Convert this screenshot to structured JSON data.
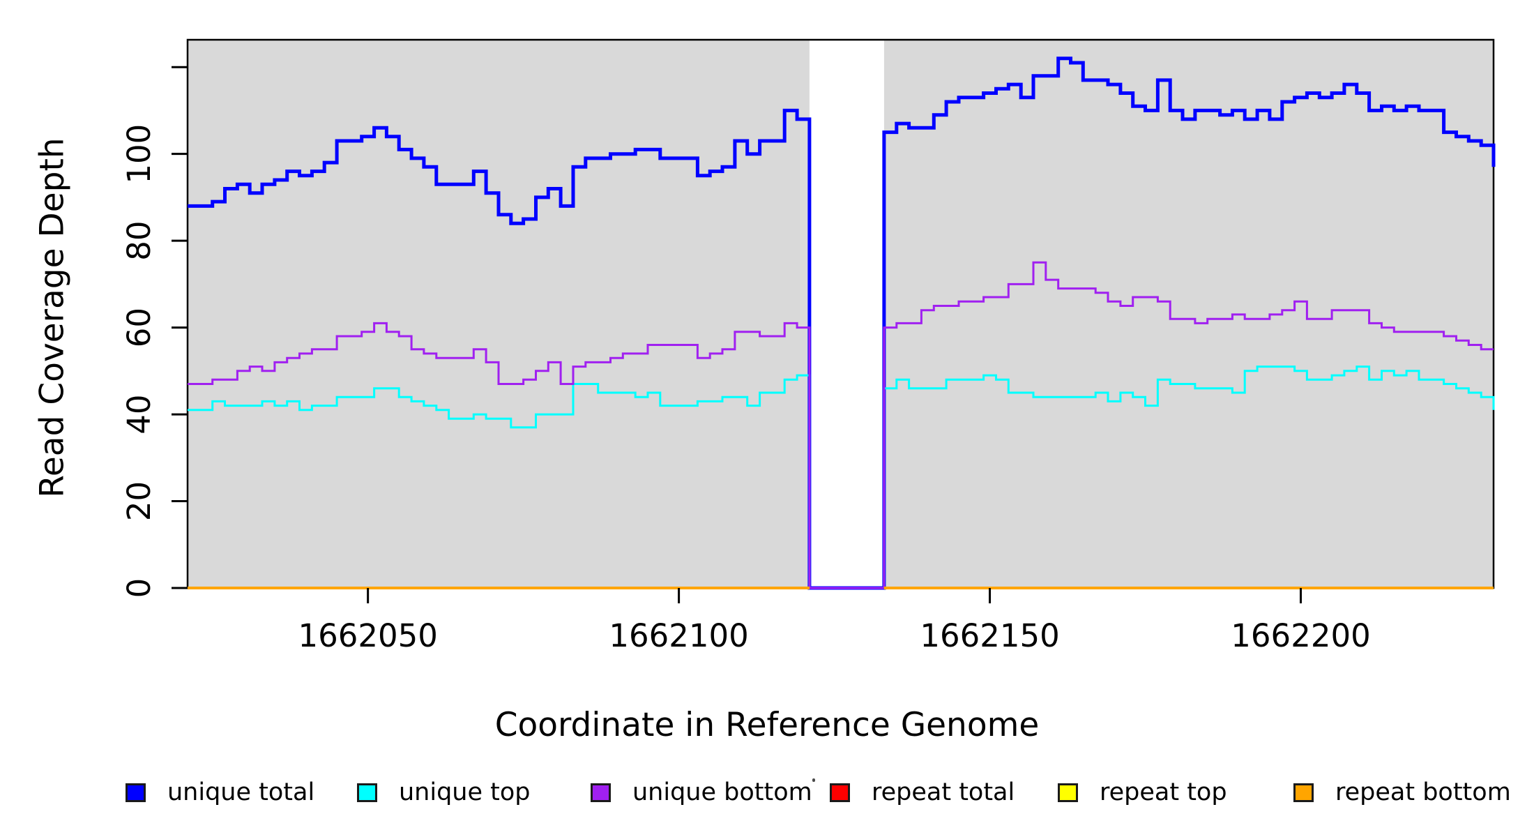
{
  "chart_data": {
    "type": "line",
    "subtype": "step-coverage",
    "title": "",
    "xlabel": "Coordinate in Reference Genome",
    "ylabel": "Read Coverage Depth",
    "xlim": [
      1662021,
      1662231
    ],
    "ylim": [
      0,
      126.3
    ],
    "x_ticks": [
      1662050,
      1662100,
      1662150,
      1662200
    ],
    "y_ticks": [
      0,
      20,
      40,
      60,
      80,
      100,
      120
    ],
    "y_tick_labels": [
      "0",
      "20",
      "40",
      "60",
      "80",
      "100",
      ""
    ],
    "grid": false,
    "panel_background": "#d9d9d9",
    "assembly_gap_region": [
      1662121,
      1662133
    ],
    "shaded_regions": [
      [
        1662021,
        1662121
      ],
      [
        1662133,
        1662231
      ]
    ],
    "x_start": 1662021,
    "x_step": 2,
    "legend": [
      "unique total",
      "unique top",
      "unique bottom",
      "repeat total",
      "repeat top",
      "repeat bottom"
    ],
    "legend_position": "bottom",
    "series": [
      {
        "name": "unique total",
        "color": "#0000ff",
        "lwd": 5,
        "values": [
          88,
          88,
          89,
          92,
          93,
          91,
          93,
          94,
          96,
          95,
          96,
          98,
          103,
          103,
          104,
          106,
          104,
          101,
          99,
          97,
          93,
          93,
          93,
          96,
          91,
          86,
          84,
          85,
          90,
          92,
          88,
          97,
          99,
          99,
          100,
          100,
          101,
          101,
          99,
          99,
          99,
          95,
          96,
          97,
          103,
          100,
          103,
          103,
          110,
          108,
          0,
          0,
          0,
          0,
          0,
          0,
          105,
          107,
          106,
          106,
          109,
          112,
          113,
          113,
          114,
          115,
          116,
          113,
          118,
          118,
          122,
          121,
          117,
          117,
          116,
          114,
          111,
          110,
          117,
          110,
          108,
          110,
          110,
          109,
          110,
          108,
          110,
          108,
          112,
          113,
          114,
          113,
          114,
          116,
          114,
          110,
          111,
          110,
          111,
          110,
          110,
          105,
          104,
          103,
          102,
          97
        ]
      },
      {
        "name": "unique top",
        "color": "#00ffff",
        "lwd": 3,
        "values": [
          41,
          41,
          43,
          42,
          42,
          42,
          43,
          42,
          43,
          41,
          42,
          42,
          44,
          44,
          44,
          46,
          46,
          44,
          43,
          42,
          41,
          39,
          39,
          40,
          39,
          39,
          37,
          37,
          40,
          40,
          40,
          47,
          47,
          45,
          45,
          45,
          44,
          45,
          42,
          42,
          42,
          43,
          43,
          44,
          44,
          42,
          45,
          45,
          48,
          49,
          0,
          0,
          0,
          0,
          0,
          0,
          46,
          48,
          46,
          46,
          46,
          48,
          48,
          48,
          49,
          48,
          45,
          45,
          44,
          44,
          44,
          44,
          44,
          45,
          43,
          45,
          44,
          42,
          48,
          47,
          47,
          46,
          46,
          46,
          45,
          50,
          51,
          51,
          51,
          50,
          48,
          48,
          49,
          50,
          51,
          48,
          50,
          49,
          50,
          48,
          48,
          47,
          46,
          45,
          44,
          41
        ]
      },
      {
        "name": "unique bottom",
        "color": "#a020f0",
        "lwd": 3,
        "values": [
          47,
          47,
          48,
          48,
          50,
          51,
          50,
          52,
          53,
          54,
          55,
          55,
          58,
          58,
          59,
          61,
          59,
          58,
          55,
          54,
          53,
          53,
          53,
          55,
          52,
          47,
          47,
          48,
          50,
          52,
          47,
          51,
          52,
          52,
          53,
          54,
          54,
          56,
          56,
          56,
          56,
          53,
          54,
          55,
          59,
          59,
          58,
          58,
          61,
          60,
          0,
          0,
          0,
          0,
          0,
          0,
          60,
          61,
          61,
          64,
          65,
          65,
          66,
          66,
          67,
          67,
          70,
          70,
          75,
          71,
          69,
          69,
          69,
          68,
          66,
          65,
          67,
          67,
          66,
          62,
          62,
          61,
          62,
          62,
          63,
          62,
          62,
          63,
          64,
          66,
          62,
          62,
          64,
          64,
          64,
          61,
          60,
          59,
          59,
          59,
          59,
          58,
          57,
          56,
          55,
          55
        ]
      },
      {
        "name": "repeat total",
        "color": "#ff0000",
        "lwd": 3,
        "values": [
          0,
          0,
          0,
          0,
          0,
          0,
          0,
          0,
          0,
          0,
          0,
          0,
          0,
          0,
          0,
          0,
          0,
          0,
          0,
          0,
          0,
          0,
          0,
          0,
          0,
          0,
          0,
          0,
          0,
          0,
          0,
          0,
          0,
          0,
          0,
          0,
          0,
          0,
          0,
          0,
          0,
          0,
          0,
          0,
          0,
          0,
          0,
          0,
          0,
          0,
          null,
          null,
          null,
          null,
          null,
          null,
          0,
          0,
          0,
          0,
          0,
          0,
          0,
          0,
          0,
          0,
          0,
          0,
          0,
          0,
          0,
          0,
          0,
          0,
          0,
          0,
          0,
          0,
          0,
          0,
          0,
          0,
          0,
          0,
          0,
          0,
          0,
          0,
          0,
          0,
          0,
          0,
          0,
          0,
          0,
          0,
          0,
          0,
          0,
          0,
          0,
          0,
          0,
          0,
          0,
          0
        ]
      },
      {
        "name": "repeat top",
        "color": "#ffff00",
        "lwd": 3,
        "values": [
          0,
          0,
          0,
          0,
          0,
          0,
          0,
          0,
          0,
          0,
          0,
          0,
          0,
          0,
          0,
          0,
          0,
          0,
          0,
          0,
          0,
          0,
          0,
          0,
          0,
          0,
          0,
          0,
          0,
          0,
          0,
          0,
          0,
          0,
          0,
          0,
          0,
          0,
          0,
          0,
          0,
          0,
          0,
          0,
          0,
          0,
          0,
          0,
          0,
          0,
          null,
          null,
          null,
          null,
          null,
          null,
          0,
          0,
          0,
          0,
          0,
          0,
          0,
          0,
          0,
          0,
          0,
          0,
          0,
          0,
          0,
          0,
          0,
          0,
          0,
          0,
          0,
          0,
          0,
          0,
          0,
          0,
          0,
          0,
          0,
          0,
          0,
          0,
          0,
          0,
          0,
          0,
          0,
          0,
          0,
          0,
          0,
          0,
          0,
          0,
          0,
          0,
          0,
          0,
          0,
          0
        ]
      },
      {
        "name": "repeat bottom",
        "color": "#ffa500",
        "lwd": 4,
        "values": [
          0,
          0,
          0,
          0,
          0,
          0,
          0,
          0,
          0,
          0,
          0,
          0,
          0,
          0,
          0,
          0,
          0,
          0,
          0,
          0,
          0,
          0,
          0,
          0,
          0,
          0,
          0,
          0,
          0,
          0,
          0,
          0,
          0,
          0,
          0,
          0,
          0,
          0,
          0,
          0,
          0,
          0,
          0,
          0,
          0,
          0,
          0,
          0,
          0,
          0,
          null,
          null,
          null,
          null,
          null,
          null,
          0,
          0,
          0,
          0,
          0,
          0,
          0,
          0,
          0,
          0,
          0,
          0,
          0,
          0,
          0,
          0,
          0,
          0,
          0,
          0,
          0,
          0,
          0,
          0,
          0,
          0,
          0,
          0,
          0,
          0,
          0,
          0,
          0,
          0,
          0,
          0,
          0,
          0,
          0,
          0,
          0,
          0,
          0,
          0,
          0,
          0,
          0,
          0,
          0,
          0
        ]
      }
    ]
  }
}
